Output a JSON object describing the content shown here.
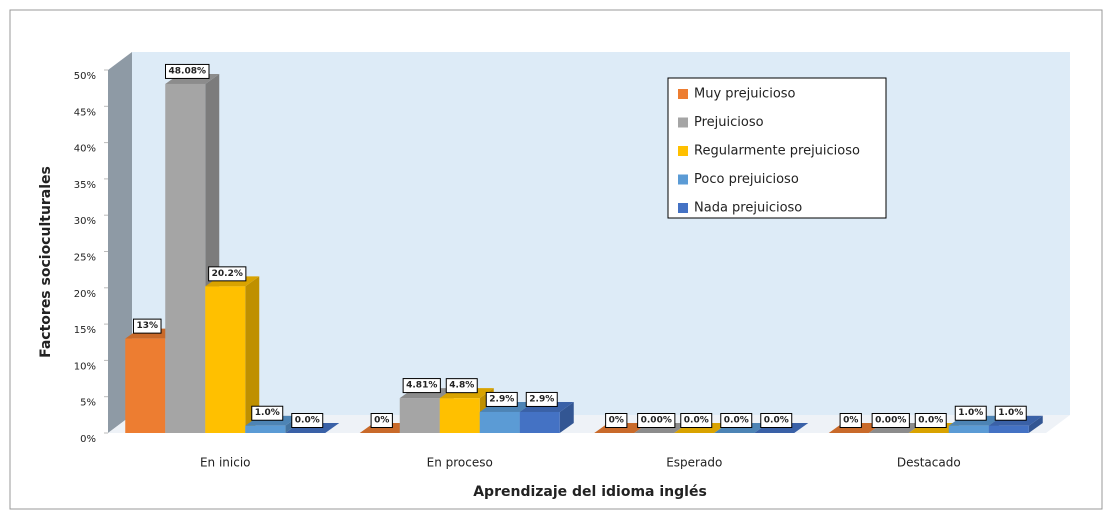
{
  "chart_data": {
    "type": "bar3d",
    "x_label": "Aprendizaje del idioma inglés",
    "y_label": "Factores socioculturales",
    "categories": [
      "En inicio",
      "En proceso",
      "Esperado",
      "Destacado"
    ],
    "series": [
      {
        "name": "Muy prejuicioso",
        "color": "#ED7D31",
        "values": [
          13,
          0,
          0,
          0
        ],
        "value_labels": [
          "13%",
          "0%",
          "0%",
          "0%"
        ]
      },
      {
        "name": "Prejuicioso",
        "color": "#A5A5A5",
        "values": [
          48.08,
          4.81,
          0.0,
          0.0
        ],
        "value_labels": [
          "48.08%",
          "4.81%",
          "0.00%",
          "0.00%"
        ]
      },
      {
        "name": "Regularmente prejuicioso",
        "color": "#FFC000",
        "values": [
          20.2,
          4.8,
          0.0,
          0.0
        ],
        "value_labels": [
          "20.2%",
          "4.8%",
          "0.0%",
          "0.0%"
        ]
      },
      {
        "name": "Poco prejuicioso",
        "color": "#5B9BD5",
        "values": [
          1.0,
          2.9,
          0.0,
          1.0
        ],
        "value_labels": [
          "1.0%",
          "2.9%",
          "0.0%",
          "1.0%"
        ]
      },
      {
        "name": "Nada prejuicioso",
        "color": "#4472C4",
        "values": [
          0.0,
          2.9,
          0.0,
          1.0
        ],
        "value_labels": [
          "0.0%",
          "2.9%",
          "0.0%",
          "1.0%"
        ]
      }
    ],
    "ylim": [
      0,
      50
    ],
    "yticks": [
      {
        "value": 0,
        "label": "0%"
      },
      {
        "value": 5,
        "label": "5%"
      },
      {
        "value": 10,
        "label": "10%"
      },
      {
        "value": 15,
        "label": "15%"
      },
      {
        "value": 20,
        "label": "20%"
      },
      {
        "value": 25,
        "label": "25%"
      },
      {
        "value": 30,
        "label": "30%"
      },
      {
        "value": 35,
        "label": "35%"
      },
      {
        "value": 40,
        "label": "40%"
      },
      {
        "value": 45,
        "label": "45%"
      },
      {
        "value": 50,
        "label": "50%"
      }
    ],
    "legend": "upper right"
  }
}
